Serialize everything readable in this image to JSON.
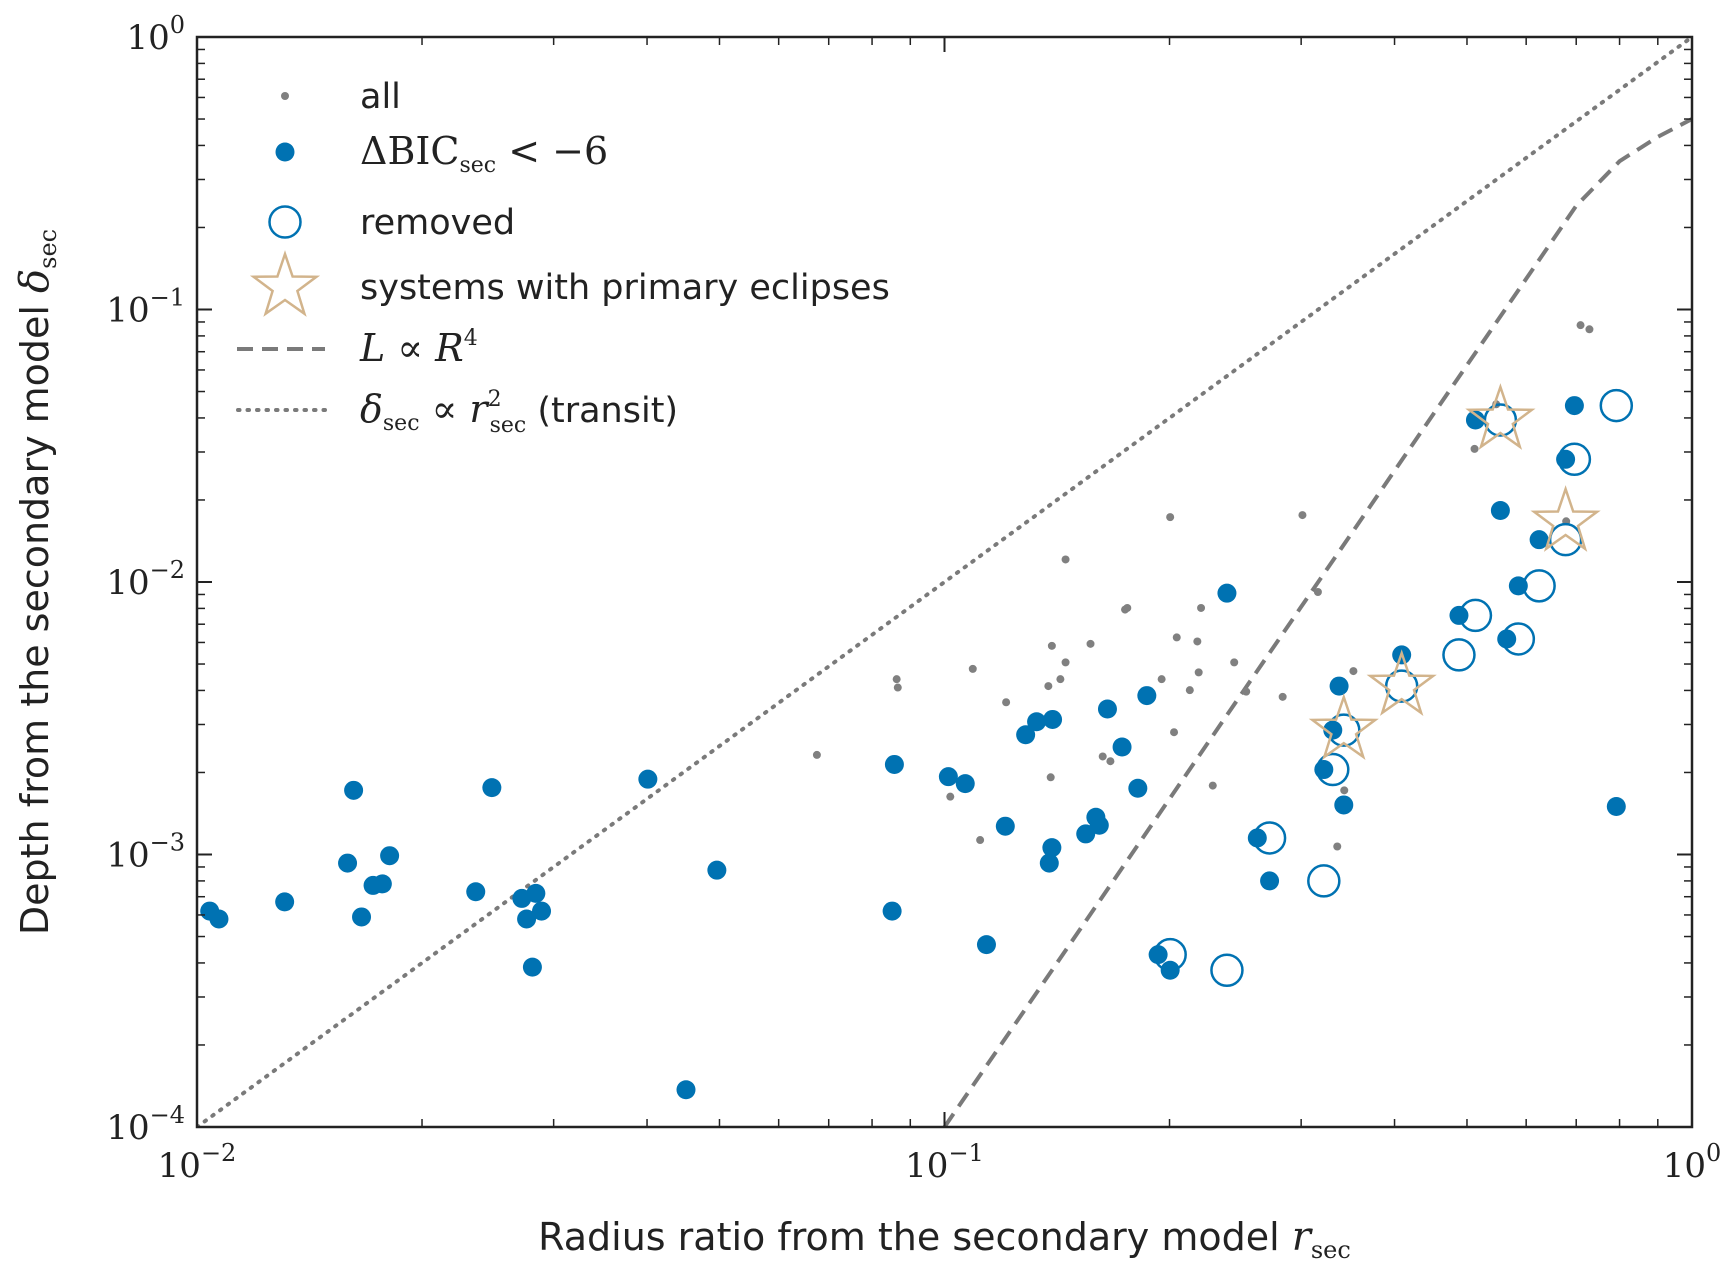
{
  "chart_data": {
    "type": "scatter",
    "xscale": "log",
    "yscale": "log",
    "xlim": [
      0.01,
      1
    ],
    "ylim": [
      0.0001,
      1
    ],
    "xticks": [
      {
        "value": 0.01,
        "base": "10",
        "exp": "−2"
      },
      {
        "value": 0.1,
        "base": "10",
        "exp": "−1"
      },
      {
        "value": 1,
        "base": "10",
        "exp": "0"
      }
    ],
    "yticks": [
      {
        "value": 0.0001,
        "base": "10",
        "exp": "−4"
      },
      {
        "value": 0.001,
        "base": "10",
        "exp": "−3"
      },
      {
        "value": 0.01,
        "base": "10",
        "exp": "−2"
      },
      {
        "value": 0.1,
        "base": "10",
        "exp": "−1"
      },
      {
        "value": 1,
        "base": "10",
        "exp": "0"
      }
    ],
    "xlabel": {
      "text": "Radius ratio from the secondary model ",
      "sym": "r",
      "sub": "sec"
    },
    "ylabel": {
      "text": "Depth from the secondary model ",
      "sym": "δ",
      "sub": "sec"
    },
    "colors": {
      "all": "#808080",
      "bic": "#0072b2",
      "star": "#d2b48c",
      "dashed": "#7a7a7a",
      "dotted": "#7a7a7a"
    },
    "legend": {
      "position": "upper-left",
      "items": [
        {
          "key": "all",
          "text": "all"
        },
        {
          "key": "bic",
          "delta": "Δ",
          "text": "BIC",
          "sub": "sec",
          "tail": " < −6"
        },
        {
          "key": "removed",
          "text": "removed"
        },
        {
          "key": "star",
          "text": "systems with primary eclipses"
        },
        {
          "key": "dashed",
          "sym1": "L",
          "mid": " ∝ ",
          "sym2": "R",
          "sup": "4"
        },
        {
          "key": "dotted",
          "sym1": "δ",
          "sub1": "sec",
          "mid": " ∝ ",
          "sym2": "r",
          "sub2": "sec",
          "sup": "2",
          "tail": " (transit)"
        }
      ]
    },
    "series": [
      {
        "name": "all",
        "x": [
          0.0675,
          0.0863,
          0.0866,
          0.1091,
          0.1018,
          0.1116,
          0.1209,
          0.1316,
          0.1377,
          0.1392,
          0.1387,
          0.1429,
          0.1452,
          0.1452,
          0.1568,
          0.1628,
          0.1744,
          0.1756,
          0.1952,
          0.2004,
          0.2028,
          0.2045,
          0.2129,
          0.2188,
          0.2179,
          0.2204,
          0.2285,
          0.2441,
          0.2533,
          0.2834,
          0.3012,
          0.3159,
          0.3234,
          0.3353,
          0.3426,
          0.3524,
          0.5118,
          0.5471,
          0.6787,
          0.7094,
          0.7291,
          0.1667
        ],
        "y": [
          0.00232,
          0.0044,
          0.0041,
          0.0048,
          0.00163,
          0.00113,
          0.00362,
          0.00307,
          0.00415,
          0.00583,
          0.00192,
          0.0044,
          0.0121,
          0.00507,
          0.00593,
          0.00229,
          0.00792,
          0.00803,
          0.0044,
          0.0173,
          0.00281,
          0.00626,
          0.00401,
          0.00466,
          0.00605,
          0.00803,
          0.00179,
          0.00507,
          0.00396,
          0.00379,
          0.0176,
          0.00919,
          0.00211,
          0.00107,
          0.00172,
          0.00471,
          0.0308,
          0.0449,
          0.0167,
          0.0876,
          0.0846,
          0.0022
        ]
      },
      {
        "name": "ΔBIC_sec < −6",
        "x": [
          0.0104,
          0.0107,
          0.0131,
          0.0159,
          0.0162,
          0.0166,
          0.0172,
          0.0177,
          0.0181,
          0.0236,
          0.0248,
          0.0272,
          0.0276,
          0.0281,
          0.0284,
          0.0289,
          0.0401,
          0.0496,
          0.0451,
          0.0857,
          0.0851,
          0.1012,
          0.1066,
          0.1138,
          0.1206,
          0.1284,
          0.1328,
          0.1395,
          0.1392,
          0.1381,
          0.1545,
          0.1594,
          0.1611,
          0.1652,
          0.1728,
          0.1814,
          0.1865,
          0.1931,
          0.2004,
          0.2387,
          0.2621,
          0.2722,
          0.3217,
          0.3307,
          0.3421,
          0.3372,
          0.4089,
          0.4878,
          0.5132,
          0.5542,
          0.5651,
          0.5857,
          0.6244,
          0.6775,
          0.6961,
          0.792
        ],
        "y": [
          0.00062,
          0.00058,
          0.00067,
          0.00093,
          0.00172,
          0.00059,
          0.00077,
          0.00078,
          0.00099,
          0.00073,
          0.00176,
          0.00069,
          0.00058,
          0.000386,
          0.00072,
          0.00062,
          0.00189,
          0.000876,
          0.000137,
          0.00214,
          0.00062,
          0.00193,
          0.00182,
          0.000467,
          0.00127,
          0.00275,
          0.00307,
          0.00313,
          0.00106,
          0.00093,
          0.00119,
          0.00137,
          0.00128,
          0.00342,
          0.00248,
          0.00175,
          0.00383,
          0.000429,
          0.000376,
          0.0091,
          0.00115,
          0.0008,
          0.00205,
          0.00286,
          0.00152,
          0.00415,
          0.0054,
          0.00754,
          0.0393,
          0.0183,
          0.00618,
          0.00968,
          0.0143,
          0.0282,
          0.0444,
          0.0015
        ]
      },
      {
        "name": "removed",
        "x": [
          0.2004,
          0.2387,
          0.2722,
          0.3217,
          0.3307,
          0.3421,
          0.4089,
          0.4878,
          0.5132,
          0.5542,
          0.5857,
          0.6244,
          0.6775,
          0.6961,
          0.792
        ],
        "y": [
          0.000429,
          0.000376,
          0.00115,
          0.0008,
          0.00205,
          0.00286,
          0.00415,
          0.0054,
          0.00754,
          0.0393,
          0.00618,
          0.00968,
          0.0143,
          0.0282,
          0.0444
        ]
      },
      {
        "name": "systems with primary eclipses",
        "x": [
          0.3421,
          0.4089,
          0.5542,
          0.6775
        ],
        "y": [
          0.00286,
          0.00415,
          0.0393,
          0.0166
        ]
      },
      {
        "name": "L ∝ R^4",
        "line": "dashed",
        "x": [
          0.1,
          0.2,
          0.3,
          0.4,
          0.5,
          0.6,
          0.7,
          0.8,
          0.9,
          1.0
        ],
        "y": [
          0.0001,
          0.0016,
          0.0081,
          0.0256,
          0.0625,
          0.1296,
          0.2401,
          0.35,
          0.43,
          0.5
        ]
      },
      {
        "name": "δ_sec ∝ r_sec^2 (transit)",
        "line": "dotted",
        "x": [
          0.01,
          1
        ],
        "y": [
          0.0001,
          1
        ]
      }
    ]
  }
}
